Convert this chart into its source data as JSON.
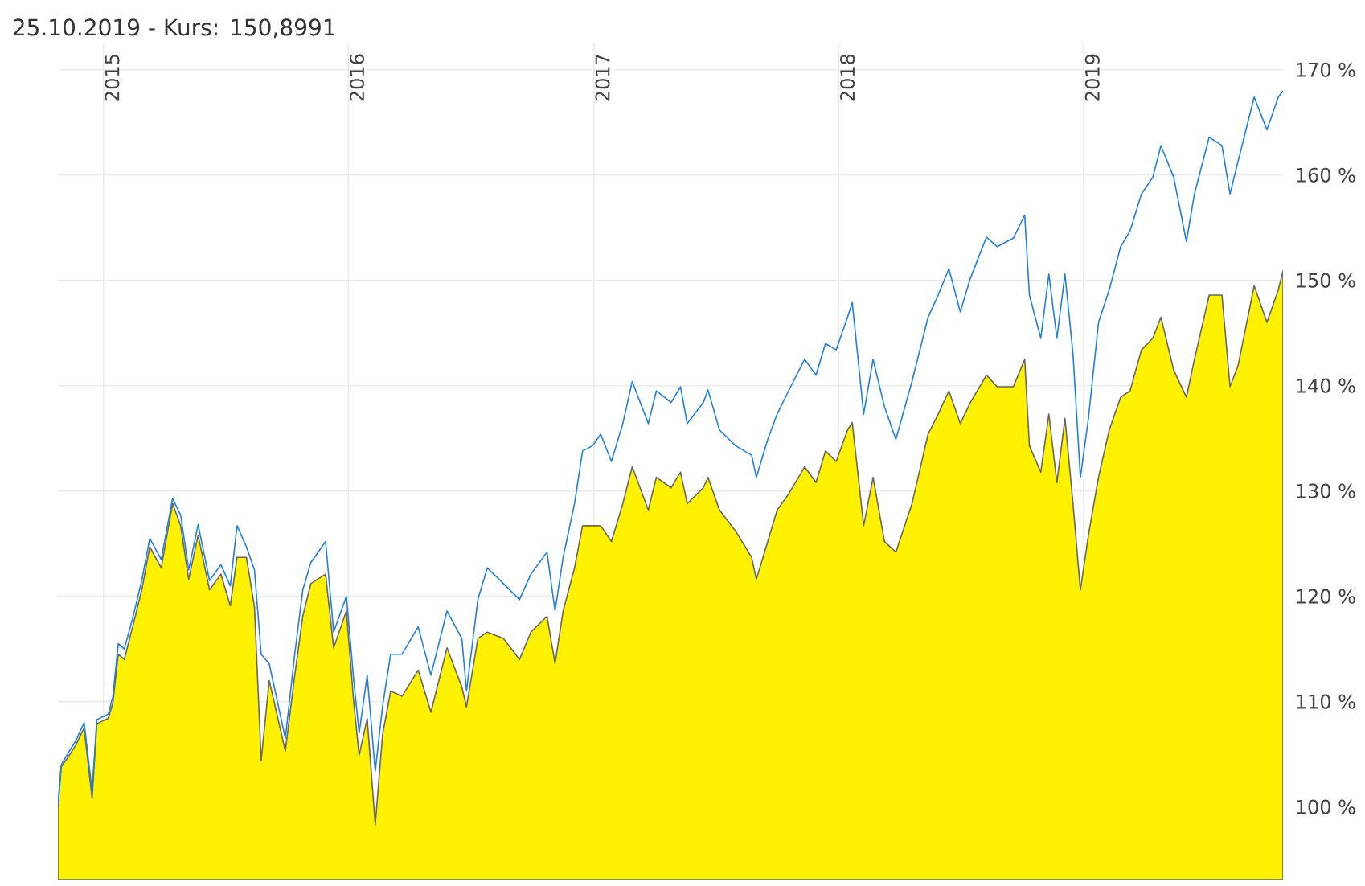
{
  "chart_data": {
    "type": "line",
    "title": "25.10.2019  - Kurs: 150,8991",
    "x": [
      "2014-10-25",
      "2014-10-30",
      "2014-11-11",
      "2014-11-21",
      "2014-12-03",
      "2014-12-15",
      "2014-12-22",
      "2015-01-08",
      "2015-01-15",
      "2015-01-23",
      "2015-02-01",
      "2015-02-15",
      "2015-02-27",
      "2015-03-11",
      "2015-03-28",
      "2015-04-14",
      "2015-04-26",
      "2015-05-08",
      "2015-05-22",
      "2015-06-08",
      "2015-06-25",
      "2015-07-09",
      "2015-07-19",
      "2015-08-02",
      "2015-08-14",
      "2015-08-24",
      "2015-09-05",
      "2015-09-29",
      "2015-10-13",
      "2015-10-25",
      "2015-11-06",
      "2015-11-28",
      "2015-12-10",
      "2015-12-29",
      "2016-01-09",
      "2016-01-17",
      "2016-01-29",
      "2016-02-10",
      "2016-02-21",
      "2016-03-04",
      "2016-03-21",
      "2016-04-14",
      "2016-05-03",
      "2016-05-27",
      "2016-06-18",
      "2016-06-25",
      "2016-07-12",
      "2016-07-26",
      "2016-08-19",
      "2016-09-12",
      "2016-09-29",
      "2016-10-23",
      "2016-11-04",
      "2016-11-16",
      "2016-12-03",
      "2016-12-15",
      "2016-12-30",
      "2017-01-11",
      "2017-01-27",
      "2017-02-13",
      "2017-02-27",
      "2017-03-23",
      "2017-04-04",
      "2017-04-26",
      "2017-05-10",
      "2017-05-20",
      "2017-06-13",
      "2017-06-20",
      "2017-07-07",
      "2017-07-31",
      "2017-08-24",
      "2017-08-31",
      "2017-09-17",
      "2017-10-01",
      "2017-10-18",
      "2017-11-11",
      "2017-11-28",
      "2017-12-12",
      "2017-12-28",
      "2018-01-14",
      "2018-01-21",
      "2018-02-07",
      "2018-02-21",
      "2018-03-10",
      "2018-03-27",
      "2018-04-20",
      "2018-05-14",
      "2018-05-29",
      "2018-06-14",
      "2018-07-01",
      "2018-07-16",
      "2018-08-09",
      "2018-08-25",
      "2018-09-18",
      "2018-10-05",
      "2018-10-12",
      "2018-10-29",
      "2018-11-10",
      "2018-11-22",
      "2018-12-04",
      "2018-12-16",
      "2018-12-27",
      "2019-01-08",
      "2019-01-23",
      "2019-02-08",
      "2019-02-25",
      "2019-03-11",
      "2019-03-28",
      "2019-04-14",
      "2019-04-26",
      "2019-05-15",
      "2019-06-03",
      "2019-06-15",
      "2019-07-07",
      "2019-07-26",
      "2019-08-07",
      "2019-08-19",
      "2019-09-12",
      "2019-10-01",
      "2019-10-18",
      "2019-10-25"
    ],
    "series": [
      {
        "type": "area",
        "color": "#fff200",
        "values": [
          100,
          103.8,
          104.9,
          105.9,
          107.5,
          100.8,
          107.9,
          108.4,
          109.9,
          114.5,
          114,
          117.5,
          120.6,
          124.7,
          122.7,
          128.8,
          126.7,
          121.6,
          125.8,
          120.6,
          122.1,
          119.1,
          123.7,
          123.7,
          119,
          104.4,
          112,
          105.3,
          112.5,
          118.1,
          121.2,
          122.1,
          115.1,
          118.6,
          109.9,
          104.9,
          108.4,
          98.3,
          106.9,
          111,
          110.5,
          113,
          109,
          115.1,
          111.4,
          109.5,
          116,
          116.6,
          116,
          114,
          116.6,
          118.1,
          113.6,
          118.6,
          122.7,
          126.7,
          126.7,
          126.7,
          125.2,
          128.8,
          132.3,
          128.2,
          131.3,
          130.3,
          131.8,
          128.8,
          130.3,
          131.3,
          128.2,
          126.2,
          123.7,
          121.6,
          125.2,
          128.2,
          129.7,
          132.3,
          130.8,
          133.8,
          132.8,
          135.8,
          136.5,
          126.7,
          131.3,
          125.2,
          124.2,
          128.8,
          135.4,
          137.3,
          139.5,
          136.4,
          138.4,
          141,
          139.9,
          139.9,
          142.5,
          134.3,
          131.8,
          137.3,
          130.8,
          136.9,
          128.8,
          120.6,
          125.8,
          131.3,
          135.8,
          138.9,
          139.5,
          143.4,
          144.5,
          146.5,
          141.5,
          138.9,
          142.5,
          148.6,
          148.6,
          139.9,
          141.9,
          149.5,
          146,
          149.1,
          150.9
        ]
      },
      {
        "color": "#1e7fe0",
        "values": [
          100,
          104,
          105.3,
          106.3,
          108,
          101.5,
          108.3,
          108.8,
          110.5,
          115.5,
          115,
          118.3,
          121.5,
          125.5,
          123.5,
          129.3,
          127.7,
          122.5,
          126.8,
          121.5,
          123,
          121,
          126.7,
          124.7,
          122.5,
          114.5,
          113.6,
          106.5,
          114.5,
          120.6,
          123.2,
          125.2,
          116.6,
          120,
          112,
          107,
          112.5,
          103.4,
          109.6,
          114.5,
          114.5,
          117.1,
          112.5,
          118.6,
          116,
          111,
          119.7,
          122.7,
          121.2,
          119.7,
          122.1,
          124.2,
          118.6,
          123.7,
          128.8,
          133.8,
          134.3,
          135.4,
          132.8,
          136.4,
          140.4,
          136.4,
          139.5,
          138.4,
          139.9,
          136.4,
          138.4,
          139.6,
          135.8,
          134.3,
          133.4,
          131.3,
          134.9,
          137.3,
          139.5,
          142.5,
          141,
          144,
          143.4,
          146.5,
          147.9,
          137.3,
          142.5,
          138,
          134.9,
          140.4,
          146.5,
          148.6,
          151.1,
          147,
          150.2,
          154.1,
          153.2,
          154,
          156.2,
          148.6,
          144.5,
          150.6,
          144.5,
          150.6,
          143,
          131.3,
          136.9,
          146,
          149.1,
          153.2,
          154.7,
          158.2,
          159.8,
          162.8,
          159.8,
          153.7,
          158.2,
          163.6,
          162.8,
          158.2,
          161.3,
          167.4,
          164.3,
          167.4,
          168
        ]
      }
    ],
    "xlim": [
      "2014-10-25",
      "2019-10-25"
    ],
    "xticks": [
      {
        "value": "2015-01-01",
        "label": "2015"
      },
      {
        "value": "2016-01-01",
        "label": "2016"
      },
      {
        "value": "2017-01-01",
        "label": "2017"
      },
      {
        "value": "2018-01-01",
        "label": "2018"
      },
      {
        "value": "2019-01-01",
        "label": "2019"
      }
    ],
    "ylim": [
      93.1,
      172.5
    ],
    "yticks": [
      {
        "value": 100,
        "label": "100 %"
      },
      {
        "value": 110,
        "label": "110 %"
      },
      {
        "value": 120,
        "label": "120 %"
      },
      {
        "value": 130,
        "label": "130 %"
      },
      {
        "value": 140,
        "label": "140 %"
      },
      {
        "value": 150,
        "label": "150 %"
      },
      {
        "value": 160,
        "label": "160 %"
      },
      {
        "value": 170,
        "label": "170 %"
      }
    ],
    "grid": true,
    "marker": "none",
    "line_style": "solid"
  }
}
